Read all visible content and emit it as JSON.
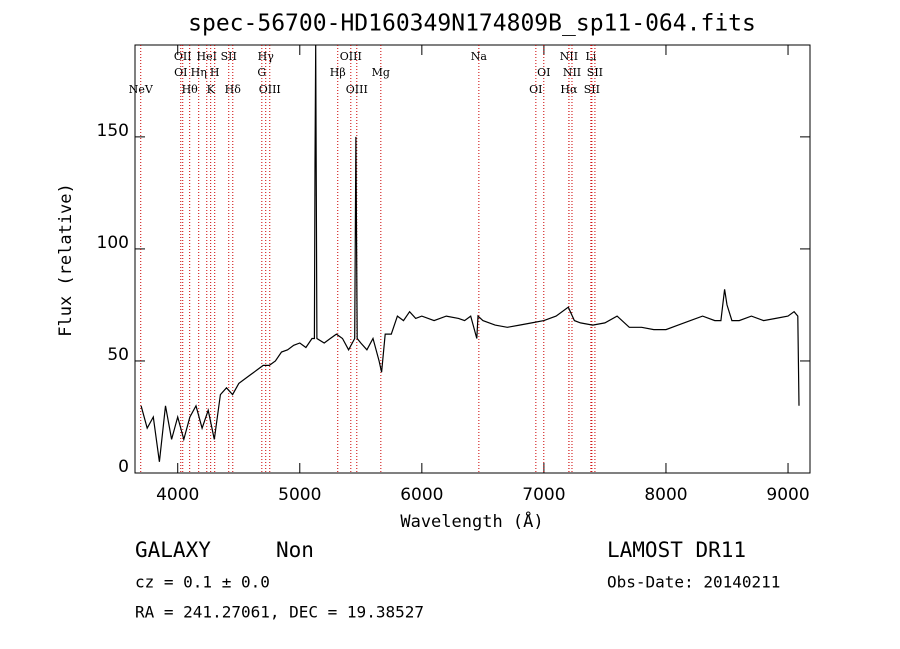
{
  "chart_data": {
    "type": "line",
    "title": "spec-56700-HD160349N174809B_sp11-064.fits",
    "x_label": "Wavelength (Å)",
    "y_label": "Flux (relative)",
    "x": [
      3700,
      3750,
      3800,
      3850,
      3900,
      3950,
      4000,
      4050,
      4100,
      4150,
      4200,
      4250,
      4300,
      4350,
      4400,
      4450,
      4500,
      4550,
      4600,
      4650,
      4700,
      4750,
      4800,
      4850,
      4900,
      4950,
      5000,
      5050,
      5100,
      5120,
      5125,
      5130,
      5140,
      5200,
      5250,
      5300,
      5350,
      5400,
      5450,
      5460,
      5470,
      5500,
      5550,
      5600,
      5650,
      5670,
      5700,
      5750,
      5800,
      5850,
      5900,
      5950,
      6000,
      6100,
      6200,
      6300,
      6350,
      6400,
      6450,
      6460,
      6500,
      6600,
      6700,
      6800,
      6900,
      7000,
      7100,
      7200,
      7250,
      7300,
      7400,
      7500,
      7600,
      7700,
      7800,
      7900,
      8000,
      8100,
      8200,
      8300,
      8400,
      8450,
      8480,
      8500,
      8540,
      8600,
      8700,
      8800,
      8900,
      9000,
      9050,
      9080,
      9090
    ],
    "values": [
      30,
      20,
      25,
      5,
      30,
      15,
      25,
      15,
      25,
      30,
      20,
      28,
      15,
      35,
      38,
      35,
      40,
      42,
      44,
      46,
      48,
      48,
      50,
      54,
      55,
      57,
      58,
      56,
      60,
      60,
      138,
      191,
      60,
      58,
      60,
      62,
      60,
      55,
      60,
      150,
      60,
      58,
      55,
      60,
      50,
      45,
      62,
      62,
      70,
      68,
      72,
      69,
      70,
      68,
      70,
      69,
      68,
      70,
      60,
      70,
      68,
      66,
      65,
      66,
      67,
      68,
      70,
      74,
      68,
      67,
      66,
      67,
      70,
      65,
      65,
      64,
      64,
      66,
      68,
      70,
      68,
      68,
      82,
      75,
      68,
      68,
      70,
      68,
      69,
      70,
      72,
      70,
      30
    ],
    "color": "#000000",
    "line_color": "#cc0000",
    "lines": [
      {
        "label": "NeV",
        "wavelength": 3697
      },
      {
        "label": "OII",
        "wavelength": 4041
      },
      {
        "label": "OI",
        "wavelength": 4025
      },
      {
        "label": "Hθ",
        "wavelength": 4098
      },
      {
        "label": "Hη",
        "wavelength": 4172
      },
      {
        "label": "HeI",
        "wavelength": 4238
      },
      {
        "label": "K",
        "wavelength": 4270
      },
      {
        "label": "H",
        "wavelength": 4303
      },
      {
        "label": "SII",
        "wavelength": 4418
      },
      {
        "label": "Hδ",
        "wavelength": 4451
      },
      {
        "label": "G",
        "wavelength": 4689
      },
      {
        "label": "Hγ",
        "wavelength": 4721
      },
      {
        "label": "OIII",
        "wavelength": 4754
      },
      {
        "label": "Hβ",
        "wavelength": 5311
      },
      {
        "label": "OIII",
        "wavelength": 5418
      },
      {
        "label": "OIII",
        "wavelength": 5467
      },
      {
        "label": "Mg",
        "wavelength": 5664
      },
      {
        "label": "Na",
        "wavelength": 6467
      },
      {
        "label": "OI",
        "wavelength": 6934
      },
      {
        "label": "OI",
        "wavelength": 6999
      },
      {
        "label": "NII",
        "wavelength": 7205
      },
      {
        "label": "Hα",
        "wavelength": 7205
      },
      {
        "label": "NII",
        "wavelength": 7230
      },
      {
        "label": "Li",
        "wavelength": 7385
      },
      {
        "label": "SII",
        "wavelength": 7393
      },
      {
        "label": "SII",
        "wavelength": 7418
      }
    ],
    "xlim": [
      3650,
      9180
    ],
    "ylim": [
      0,
      191
    ],
    "xticks": [
      4000,
      5000,
      6000,
      7000,
      8000,
      9000
    ],
    "yticks": [
      0,
      50,
      100,
      150
    ],
    "info": {
      "class": "GALAXY",
      "subclass": "Non",
      "survey": "LAMOST DR11",
      "cz": "cz = 0.1 ± 0.0",
      "obs_date": "Obs-Date: 20140211",
      "coords": "RA = 241.27061, DEC =  19.38527"
    }
  }
}
